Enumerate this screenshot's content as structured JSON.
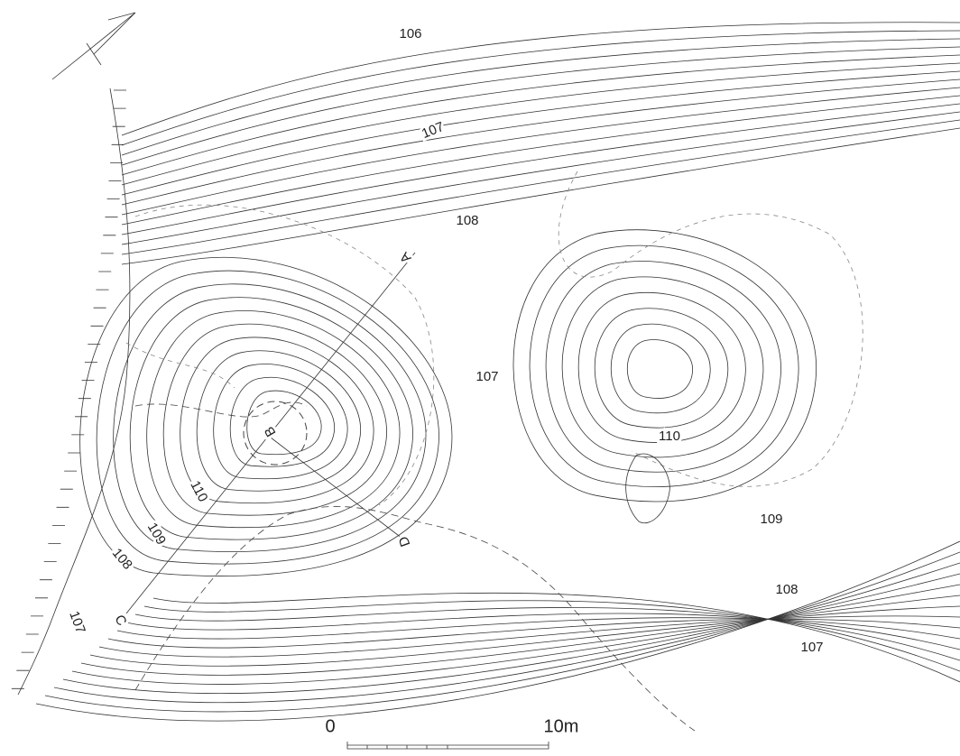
{
  "contour_labels": [
    "106",
    "107",
    "108",
    "107",
    "110",
    "109",
    "108",
    "107",
    "110",
    "109",
    "108",
    "107"
  ],
  "section_points": [
    "A",
    "B",
    "C",
    "D"
  ],
  "scale_bar": {
    "start": "0",
    "end": "10m"
  }
}
